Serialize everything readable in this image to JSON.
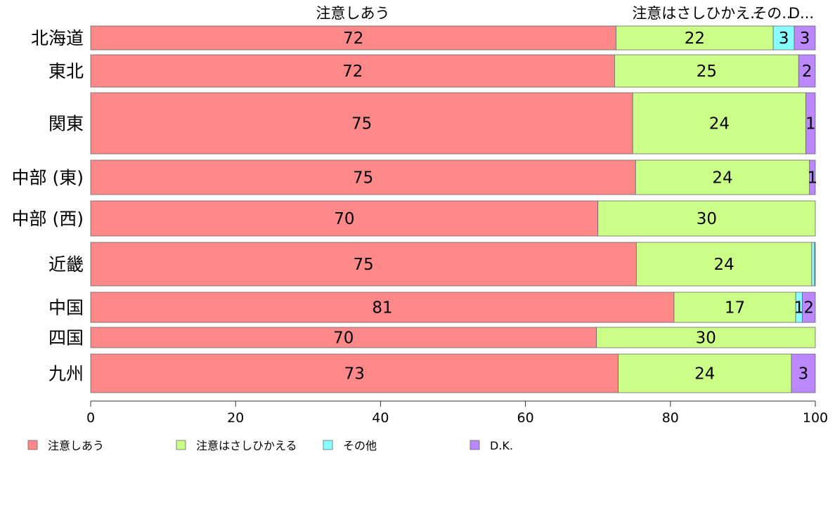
{
  "chart_data": {
    "type": "bar",
    "orientation": "horizontal",
    "stacked": true,
    "categories": [
      "北海道",
      "東北",
      "関東",
      "中部 (東)",
      "中部 (西)",
      "近畿",
      "中国",
      "四国",
      "九州"
    ],
    "series": [
      {
        "name": "注意しあう",
        "color": "#ff8888",
        "values": [
          72.5,
          72.3,
          74.8,
          75.2,
          70.0,
          75.3,
          80.5,
          69.8,
          72.8
        ]
      },
      {
        "name": "注意はさしひかえる",
        "color": "#ccff88",
        "values": [
          21.7,
          25.4,
          23.9,
          24.0,
          30.0,
          24.2,
          16.8,
          30.2,
          23.9
        ]
      },
      {
        "name": "その他",
        "color": "#88ffff",
        "values": [
          2.9,
          0.0,
          0.0,
          0.0,
          0.0,
          0.4,
          0.9,
          0.0,
          0.0
        ]
      },
      {
        "name": "D.K.",
        "color": "#bb88ff",
        "values": [
          2.9,
          2.3,
          1.3,
          0.8,
          0.0,
          0.1,
          1.8,
          0.0,
          3.3
        ]
      }
    ],
    "data_labels": [
      [
        "72",
        "22",
        "3",
        "3"
      ],
      [
        "72",
        "25",
        "",
        "2"
      ],
      [
        "75",
        "24",
        "",
        "1"
      ],
      [
        "75",
        "24",
        "",
        "1"
      ],
      [
        "70",
        "30",
        "",
        ""
      ],
      [
        "75",
        "24",
        "",
        ""
      ],
      [
        "81",
        "17",
        "1",
        "2"
      ],
      [
        "70",
        "30",
        "",
        ""
      ],
      [
        "73",
        "24",
        "",
        "3"
      ]
    ],
    "top_labels": [
      "注意しあう",
      "注意はさしひかえ..",
      "その..",
      "D..."
    ],
    "xlim": [
      0,
      100
    ],
    "xticks": [
      0,
      20,
      40,
      60,
      80,
      100
    ],
    "xlabel": "",
    "ylabel": "",
    "title": "",
    "grid": false,
    "legend_position": "bottom"
  }
}
